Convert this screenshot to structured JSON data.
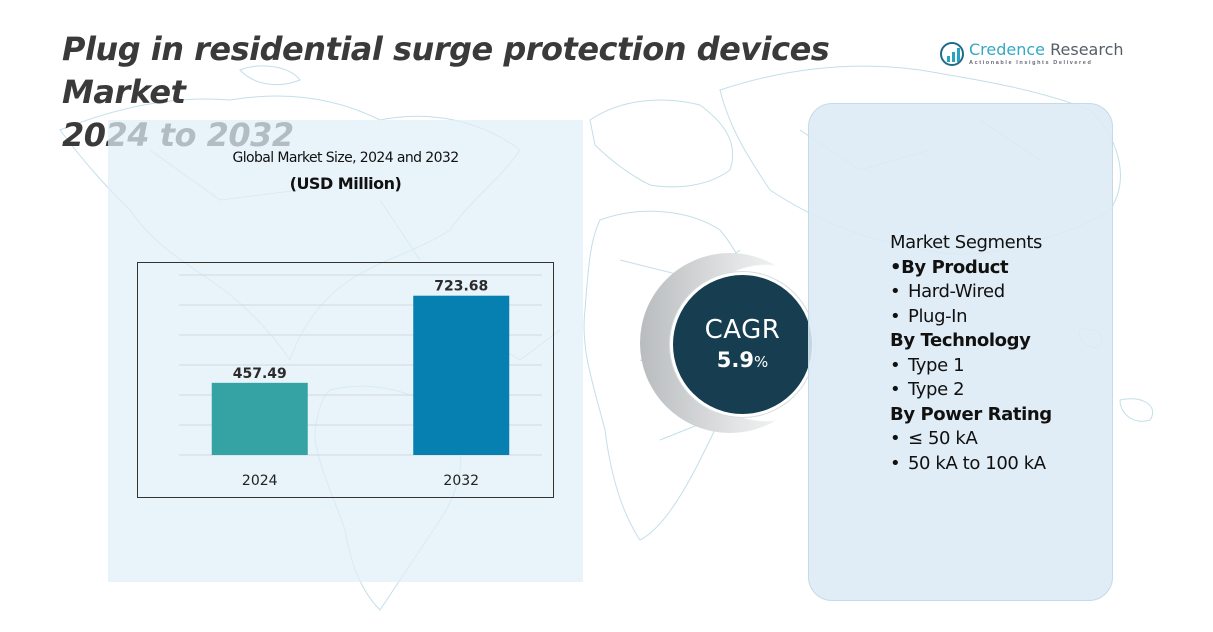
{
  "header": {
    "title_line1": "Plug in residential surge protection devices Market",
    "title_line2": "2024 to 2032"
  },
  "logo": {
    "name_part1": "Credence",
    "name_part2": " Research",
    "tagline": "Actionable Insights Delivered"
  },
  "colors": {
    "bar_2024": "#35a3a3",
    "bar_2032": "#0580b1",
    "cagr_circle": "#163d50",
    "panel_bg": "#e0eef8",
    "title_text": "#3a3a3a",
    "gridline": "#cfd9df"
  },
  "chart_data": {
    "type": "bar",
    "title": "Global Market Size, 2024 and 2032",
    "subtitle": "(USD Million)",
    "xlabel": "",
    "ylabel": "",
    "categories": [
      "2024",
      "2032"
    ],
    "values": [
      457.49,
      723.68
    ],
    "data_labels": [
      "457.49",
      "723.68"
    ],
    "ylim": [
      237,
      790
    ],
    "grid": true,
    "legend": "none"
  },
  "cagr": {
    "label": "CAGR",
    "value": "5.9",
    "unit": "%"
  },
  "segments": {
    "heading": "Market Segments",
    "groups": [
      {
        "title": "•By Product",
        "items": [
          "Hard-Wired",
          "Plug-In"
        ]
      },
      {
        "title": "By Technology",
        "items": [
          "Type 1",
          "Type 2"
        ]
      },
      {
        "title": "By Power Rating",
        "items": [
          "≤ 50 kA",
          "50 kA to 100 kA"
        ]
      }
    ]
  }
}
